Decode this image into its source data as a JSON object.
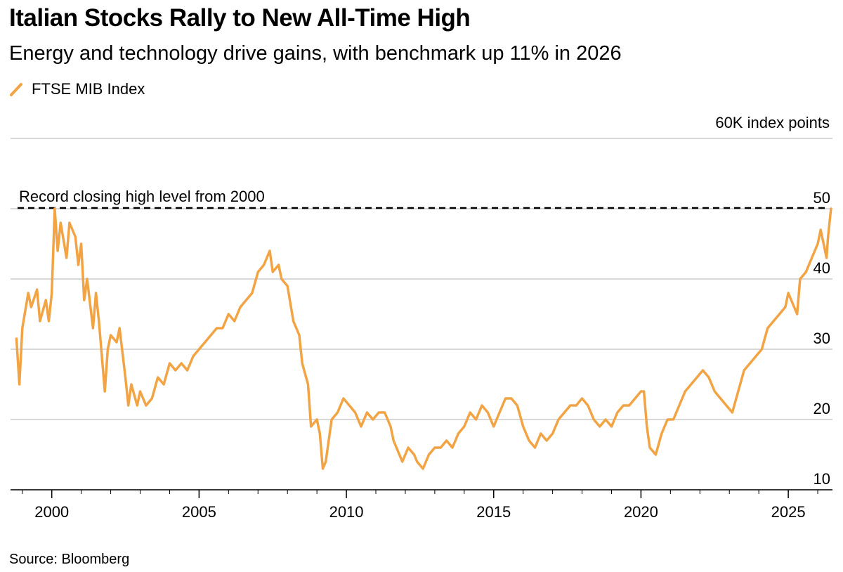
{
  "title": "Italian Stocks Rally to New All-Time High",
  "subtitle": "Energy and technology drive gains, with benchmark up 11% in 2026",
  "source": "Source: Bloomberg",
  "colors": {
    "series": "#F2A444",
    "grid": "#cccccc",
    "axis": "#000000",
    "reference": "#000000"
  },
  "chart_data": {
    "type": "line",
    "title": "Italian Stocks Rally to New All-Time High",
    "subtitle": "Energy and technology drive gains, with benchmark up 11% in 2026",
    "unit_label": "60K index points",
    "y_unit": "thousand index points",
    "ylim": [
      10,
      60
    ],
    "yticks": [
      {
        "value": 10,
        "label": "10"
      },
      {
        "value": 20,
        "label": "20"
      },
      {
        "value": 30,
        "label": "30"
      },
      {
        "value": 40,
        "label": "40"
      },
      {
        "value": 50,
        "label": "50"
      }
    ],
    "xlim": [
      1998.6,
      2026.5
    ],
    "xticks": [
      {
        "value": 2000,
        "label": "2000"
      },
      {
        "value": 2005,
        "label": "2005"
      },
      {
        "value": 2010,
        "label": "2010"
      },
      {
        "value": 2015,
        "label": "2015"
      },
      {
        "value": 2020,
        "label": "2020"
      },
      {
        "value": 2025,
        "label": "2025"
      }
    ],
    "grid": true,
    "legend_position": "top-left",
    "annotation": {
      "label": "Record closing high level from 2000",
      "y": 50.1
    },
    "series": [
      {
        "name": "FTSE MIB Index",
        "color": "#F2A444",
        "x": [
          1998.8,
          1998.9,
          1999.0,
          1999.2,
          1999.3,
          1999.5,
          1999.6,
          1999.8,
          1999.9,
          2000.0,
          2000.1,
          2000.2,
          2000.3,
          2000.5,
          2000.6,
          2000.8,
          2000.9,
          2001.0,
          2001.1,
          2001.2,
          2001.4,
          2001.5,
          2001.6,
          2001.7,
          2001.8,
          2001.9,
          2002.0,
          2002.2,
          2002.3,
          2002.5,
          2002.6,
          2002.7,
          2002.9,
          2003.0,
          2003.2,
          2003.4,
          2003.6,
          2003.8,
          2004.0,
          2004.2,
          2004.4,
          2004.6,
          2004.8,
          2005.0,
          2005.2,
          2005.4,
          2005.6,
          2005.8,
          2006.0,
          2006.2,
          2006.4,
          2006.6,
          2006.8,
          2007.0,
          2007.2,
          2007.4,
          2007.5,
          2007.7,
          2007.8,
          2008.0,
          2008.2,
          2008.4,
          2008.5,
          2008.7,
          2008.8,
          2009.0,
          2009.1,
          2009.2,
          2009.3,
          2009.5,
          2009.7,
          2009.9,
          2010.1,
          2010.3,
          2010.5,
          2010.7,
          2010.9,
          2011.1,
          2011.3,
          2011.5,
          2011.6,
          2011.8,
          2011.9,
          2012.1,
          2012.3,
          2012.4,
          2012.6,
          2012.8,
          2013.0,
          2013.2,
          2013.4,
          2013.6,
          2013.8,
          2014.0,
          2014.2,
          2014.4,
          2014.6,
          2014.8,
          2015.0,
          2015.2,
          2015.4,
          2015.6,
          2015.8,
          2016.0,
          2016.2,
          2016.4,
          2016.6,
          2016.8,
          2017.0,
          2017.2,
          2017.4,
          2017.6,
          2017.8,
          2018.0,
          2018.2,
          2018.4,
          2018.6,
          2018.8,
          2019.0,
          2019.2,
          2019.4,
          2019.6,
          2019.8,
          2020.0,
          2020.1,
          2020.2,
          2020.3,
          2020.5,
          2020.7,
          2020.9,
          2021.1,
          2021.3,
          2021.5,
          2021.7,
          2021.9,
          2022.1,
          2022.3,
          2022.5,
          2022.7,
          2022.9,
          2023.1,
          2023.3,
          2023.5,
          2023.7,
          2023.9,
          2024.1,
          2024.3,
          2024.5,
          2024.7,
          2024.9,
          2025.0,
          2025.1,
          2025.2,
          2025.3,
          2025.4,
          2025.6,
          2025.8,
          2026.0,
          2026.1,
          2026.2,
          2026.3,
          2026.35,
          2026.4,
          2026.45
        ],
        "y": [
          31.5,
          25,
          33,
          38,
          36,
          38.5,
          34,
          37,
          34,
          38,
          50,
          44,
          48,
          43,
          48,
          46,
          42,
          45,
          37,
          40,
          33,
          38,
          34,
          29,
          24,
          30,
          32,
          31,
          33,
          26,
          22,
          25,
          22,
          24,
          22,
          23,
          26,
          25,
          28,
          27,
          28,
          27,
          29,
          30,
          31,
          32,
          33,
          33,
          35,
          34,
          36,
          37,
          38,
          41,
          42,
          44,
          41,
          42,
          40,
          39,
          34,
          32,
          28,
          25,
          19,
          20,
          18,
          13,
          14,
          20,
          21,
          23,
          22,
          21,
          19,
          21,
          20,
          21,
          21,
          19,
          17,
          15,
          14,
          16,
          15,
          14,
          13,
          15,
          16,
          16,
          17,
          16,
          18,
          19,
          21,
          20,
          22,
          21,
          19,
          21,
          23,
          23,
          22,
          19,
          17,
          16,
          18,
          17,
          18,
          20,
          21,
          22,
          22,
          23,
          22,
          20,
          19,
          20,
          19,
          21,
          22,
          22,
          23,
          24,
          24,
          19,
          16,
          15,
          18,
          20,
          20,
          22,
          24,
          25,
          26,
          27,
          26,
          24,
          23,
          22,
          21,
          24,
          27,
          28,
          29,
          30,
          33,
          34,
          35,
          36,
          38,
          37,
          36,
          35,
          40,
          41,
          43,
          45,
          47,
          45,
          43,
          46,
          48,
          50
        ]
      }
    ]
  }
}
